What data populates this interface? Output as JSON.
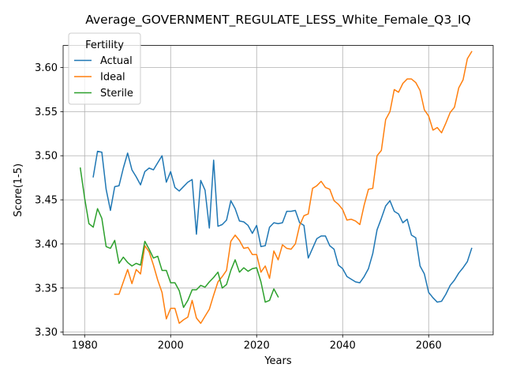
{
  "chart_data": {
    "type": "line",
    "title": "Average_GOVERNMENT_REGULATE_LESS_White_Female_Q3_IQ",
    "xlabel": "Years",
    "ylabel": "Score(1-5)",
    "xlim": [
      1975,
      2075
    ],
    "ylim": [
      3.297,
      3.625
    ],
    "xticks": [
      1980,
      2000,
      2020,
      2040,
      2060
    ],
    "yticks": [
      3.3,
      3.35,
      3.4,
      3.45,
      3.5,
      3.55,
      3.6
    ],
    "xtick_labels": [
      "1980",
      "2000",
      "2020",
      "2040",
      "2060"
    ],
    "ytick_labels": [
      "3.30",
      "3.35",
      "3.40",
      "3.45",
      "3.50",
      "3.55",
      "3.60"
    ],
    "grid": true,
    "legend": {
      "title": "Fertility",
      "placement": "top-left"
    },
    "series": [
      {
        "name": "Actual",
        "color": "#1f77b4",
        "points": [
          [
            1982,
            3.476
          ],
          [
            1983,
            3.505
          ],
          [
            1984,
            3.504
          ],
          [
            1985,
            3.462
          ],
          [
            1986,
            3.438
          ],
          [
            1987,
            3.465
          ],
          [
            1988,
            3.466
          ],
          [
            1989,
            3.486
          ],
          [
            1990,
            3.503
          ],
          [
            1991,
            3.484
          ],
          [
            1992,
            3.476
          ],
          [
            1993,
            3.467
          ],
          [
            1994,
            3.482
          ],
          [
            1995,
            3.486
          ],
          [
            1996,
            3.484
          ],
          [
            1997,
            3.492
          ],
          [
            1998,
            3.5
          ],
          [
            1999,
            3.47
          ],
          [
            2000,
            3.482
          ],
          [
            2001,
            3.464
          ],
          [
            2002,
            3.46
          ],
          [
            2003,
            3.465
          ],
          [
            2004,
            3.47
          ],
          [
            2005,
            3.473
          ],
          [
            2006,
            3.411
          ],
          [
            2007,
            3.472
          ],
          [
            2008,
            3.461
          ],
          [
            2009,
            3.418
          ],
          [
            2010,
            3.495
          ],
          [
            2011,
            3.42
          ],
          [
            2012,
            3.422
          ],
          [
            2013,
            3.427
          ],
          [
            2014,
            3.449
          ],
          [
            2015,
            3.44
          ],
          [
            2016,
            3.426
          ],
          [
            2017,
            3.425
          ],
          [
            2018,
            3.421
          ],
          [
            2019,
            3.412
          ],
          [
            2020,
            3.421
          ],
          [
            2021,
            3.397
          ],
          [
            2022,
            3.398
          ],
          [
            2023,
            3.419
          ],
          [
            2024,
            3.424
          ],
          [
            2025,
            3.423
          ],
          [
            2026,
            3.424
          ],
          [
            2027,
            3.437
          ],
          [
            2028,
            3.437
          ],
          [
            2029,
            3.438
          ],
          [
            2030,
            3.424
          ],
          [
            2031,
            3.421
          ],
          [
            2032,
            3.384
          ],
          [
            2033,
            3.395
          ],
          [
            2034,
            3.406
          ],
          [
            2035,
            3.409
          ],
          [
            2036,
            3.409
          ],
          [
            2037,
            3.398
          ],
          [
            2038,
            3.394
          ],
          [
            2039,
            3.376
          ],
          [
            2040,
            3.372
          ],
          [
            2041,
            3.363
          ],
          [
            2042,
            3.36
          ],
          [
            2043,
            3.357
          ],
          [
            2044,
            3.356
          ],
          [
            2045,
            3.363
          ],
          [
            2046,
            3.372
          ],
          [
            2047,
            3.389
          ],
          [
            2048,
            3.416
          ],
          [
            2049,
            3.429
          ],
          [
            2050,
            3.443
          ],
          [
            2051,
            3.449
          ],
          [
            2052,
            3.437
          ],
          [
            2053,
            3.434
          ],
          [
            2054,
            3.424
          ],
          [
            2055,
            3.428
          ],
          [
            2056,
            3.41
          ],
          [
            2057,
            3.407
          ],
          [
            2058,
            3.375
          ],
          [
            2059,
            3.366
          ],
          [
            2060,
            3.345
          ],
          [
            2061,
            3.339
          ],
          [
            2062,
            3.334
          ],
          [
            2063,
            3.335
          ],
          [
            2064,
            3.343
          ],
          [
            2065,
            3.353
          ],
          [
            2066,
            3.359
          ],
          [
            2067,
            3.367
          ],
          [
            2068,
            3.373
          ],
          [
            2069,
            3.38
          ],
          [
            2070,
            3.395
          ]
        ]
      },
      {
        "name": "Ideal",
        "color": "#ff7f0e",
        "points": [
          [
            1987,
            3.343
          ],
          [
            1988,
            3.343
          ],
          [
            1989,
            3.357
          ],
          [
            1990,
            3.371
          ],
          [
            1991,
            3.355
          ],
          [
            1992,
            3.371
          ],
          [
            1993,
            3.366
          ],
          [
            1994,
            3.398
          ],
          [
            1995,
            3.391
          ],
          [
            1996,
            3.376
          ],
          [
            1997,
            3.359
          ],
          [
            1998,
            3.345
          ],
          [
            1999,
            3.315
          ],
          [
            2000,
            3.327
          ],
          [
            2001,
            3.327
          ],
          [
            2002,
            3.31
          ],
          [
            2003,
            3.314
          ],
          [
            2004,
            3.317
          ],
          [
            2005,
            3.336
          ],
          [
            2006,
            3.316
          ],
          [
            2007,
            3.31
          ],
          [
            2008,
            3.318
          ],
          [
            2009,
            3.326
          ],
          [
            2010,
            3.342
          ],
          [
            2011,
            3.357
          ],
          [
            2012,
            3.363
          ],
          [
            2013,
            3.37
          ],
          [
            2014,
            3.403
          ],
          [
            2015,
            3.41
          ],
          [
            2016,
            3.404
          ],
          [
            2017,
            3.395
          ],
          [
            2018,
            3.396
          ],
          [
            2019,
            3.388
          ],
          [
            2020,
            3.388
          ],
          [
            2021,
            3.368
          ],
          [
            2022,
            3.375
          ],
          [
            2023,
            3.361
          ],
          [
            2024,
            3.392
          ],
          [
            2025,
            3.382
          ],
          [
            2026,
            3.399
          ],
          [
            2027,
            3.395
          ],
          [
            2028,
            3.394
          ],
          [
            2029,
            3.4
          ],
          [
            2030,
            3.421
          ],
          [
            2031,
            3.432
          ],
          [
            2032,
            3.434
          ],
          [
            2033,
            3.463
          ],
          [
            2034,
            3.466
          ],
          [
            2035,
            3.471
          ],
          [
            2036,
            3.464
          ],
          [
            2037,
            3.462
          ],
          [
            2038,
            3.449
          ],
          [
            2039,
            3.445
          ],
          [
            2040,
            3.439
          ],
          [
            2041,
            3.427
          ],
          [
            2042,
            3.428
          ],
          [
            2043,
            3.426
          ],
          [
            2044,
            3.422
          ],
          [
            2045,
            3.444
          ],
          [
            2046,
            3.462
          ],
          [
            2047,
            3.463
          ],
          [
            2048,
            3.5
          ],
          [
            2049,
            3.506
          ],
          [
            2050,
            3.541
          ],
          [
            2051,
            3.55
          ],
          [
            2052,
            3.575
          ],
          [
            2053,
            3.572
          ],
          [
            2054,
            3.582
          ],
          [
            2055,
            3.587
          ],
          [
            2056,
            3.587
          ],
          [
            2057,
            3.583
          ],
          [
            2058,
            3.574
          ],
          [
            2059,
            3.552
          ],
          [
            2060,
            3.545
          ],
          [
            2061,
            3.529
          ],
          [
            2062,
            3.532
          ],
          [
            2063,
            3.526
          ],
          [
            2064,
            3.537
          ],
          [
            2065,
            3.549
          ],
          [
            2066,
            3.555
          ],
          [
            2067,
            3.577
          ],
          [
            2068,
            3.586
          ],
          [
            2069,
            3.61
          ],
          [
            2070,
            3.618
          ]
        ]
      },
      {
        "name": "Sterile",
        "color": "#2ca02c",
        "points": [
          [
            1979,
            3.486
          ],
          [
            1980,
            3.452
          ],
          [
            1981,
            3.423
          ],
          [
            1982,
            3.419
          ],
          [
            1983,
            3.44
          ],
          [
            1984,
            3.429
          ],
          [
            1985,
            3.397
          ],
          [
            1986,
            3.395
          ],
          [
            1987,
            3.404
          ],
          [
            1988,
            3.378
          ],
          [
            1989,
            3.385
          ],
          [
            1990,
            3.379
          ],
          [
            1991,
            3.375
          ],
          [
            1992,
            3.378
          ],
          [
            1993,
            3.376
          ],
          [
            1994,
            3.403
          ],
          [
            1995,
            3.394
          ],
          [
            1996,
            3.384
          ],
          [
            1997,
            3.386
          ],
          [
            1998,
            3.37
          ],
          [
            1999,
            3.37
          ],
          [
            2000,
            3.356
          ],
          [
            2001,
            3.356
          ],
          [
            2002,
            3.347
          ],
          [
            2003,
            3.328
          ],
          [
            2004,
            3.336
          ],
          [
            2005,
            3.348
          ],
          [
            2006,
            3.348
          ],
          [
            2007,
            3.353
          ],
          [
            2008,
            3.351
          ],
          [
            2009,
            3.357
          ],
          [
            2010,
            3.362
          ],
          [
            2011,
            3.368
          ],
          [
            2012,
            3.35
          ],
          [
            2013,
            3.354
          ],
          [
            2014,
            3.37
          ],
          [
            2015,
            3.382
          ],
          [
            2016,
            3.368
          ],
          [
            2017,
            3.373
          ],
          [
            2018,
            3.369
          ],
          [
            2019,
            3.372
          ],
          [
            2020,
            3.373
          ],
          [
            2021,
            3.357
          ],
          [
            2022,
            3.334
          ],
          [
            2023,
            3.336
          ],
          [
            2024,
            3.349
          ],
          [
            2025,
            3.34
          ]
        ]
      }
    ]
  }
}
